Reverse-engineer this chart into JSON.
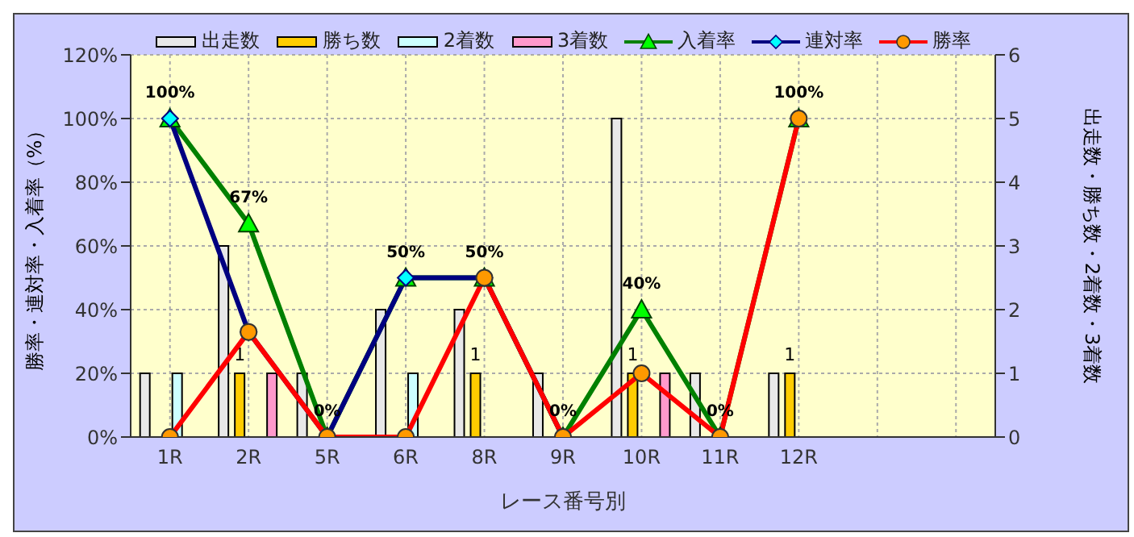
{
  "chart_data": {
    "type": "bar",
    "xlabel": "レース番号別",
    "ylabel": "勝率・連対率・入着率（%）",
    "y2label": "出走数・勝ち数・2着数・3着数",
    "categories": [
      "1R",
      "2R",
      "5R",
      "6R",
      "8R",
      "9R",
      "10R",
      "11R",
      "12R",
      null,
      null
    ],
    "series": [
      {
        "name": "出走数",
        "axis": "y2",
        "color": "#e8e8e8",
        "values": [
          1,
          3,
          1,
          2,
          2,
          1,
          5,
          1,
          1,
          null,
          null
        ]
      },
      {
        "name": "勝ち数",
        "axis": "y2",
        "color": "#ffcc00",
        "values": [
          0,
          1,
          0,
          0,
          1,
          0,
          1,
          0,
          1,
          null,
          null
        ],
        "value_labels": [
          null,
          "1",
          null,
          null,
          "1",
          null,
          "1",
          null,
          "1",
          null,
          null
        ]
      },
      {
        "name": "2着数",
        "axis": "y2",
        "color": "#ccffff",
        "values": [
          1,
          0,
          0,
          1,
          0,
          0,
          0,
          0,
          0,
          null,
          null
        ]
      },
      {
        "name": "3着数",
        "axis": "y2",
        "color": "#ff99cc",
        "values": [
          0,
          1,
          0,
          0,
          0,
          0,
          1,
          0,
          0,
          null,
          null
        ]
      },
      {
        "name": "入着率",
        "type": "line",
        "color": "#008000",
        "marker": "triangle",
        "values": [
          100,
          67,
          0,
          50,
          50,
          0,
          40,
          0,
          100,
          null,
          null
        ],
        "value_labels": [
          "100%",
          "67%",
          "0%",
          "50%",
          "50%",
          "0%",
          "40%",
          "0%",
          "100%",
          null,
          null
        ]
      },
      {
        "name": "連対率",
        "type": "line",
        "color": "#000080",
        "marker": "diamond",
        "values": [
          100,
          33,
          0,
          50,
          50,
          0,
          null,
          null,
          null,
          null,
          null
        ]
      },
      {
        "name": "勝率",
        "type": "line",
        "color": "#ff0000",
        "marker": "circle",
        "values": [
          0,
          33,
          0,
          0,
          50,
          0,
          20,
          0,
          100,
          null,
          null
        ]
      }
    ],
    "ylim": [
      0,
      120
    ],
    "yticks": [
      {
        "value": 0,
        "label": "0%"
      },
      {
        "value": 20,
        "label": "20%"
      },
      {
        "value": 40,
        "label": "40%"
      },
      {
        "value": 60,
        "label": "60%"
      },
      {
        "value": 80,
        "label": "80%"
      },
      {
        "value": 100,
        "label": "100%"
      },
      {
        "value": 120,
        "label": "120%"
      }
    ],
    "y2lim": [
      0,
      6
    ],
    "y2ticks": [
      0,
      1,
      2,
      3,
      4,
      5,
      6
    ],
    "grid": true,
    "legend": "top",
    "line_style": "solid"
  }
}
